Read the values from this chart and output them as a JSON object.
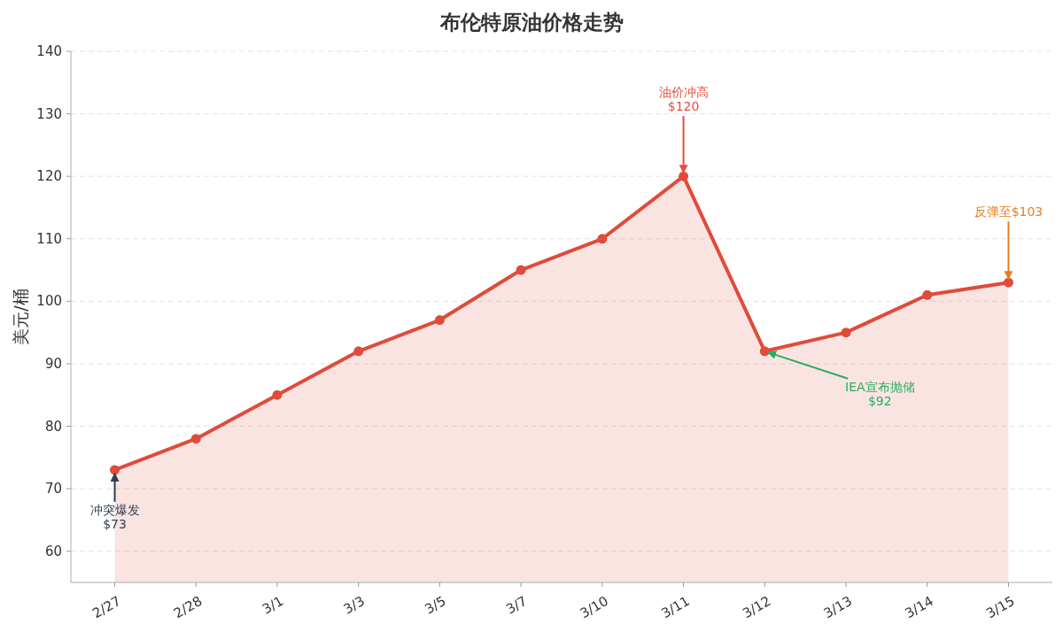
{
  "chart_data": {
    "type": "area",
    "title": "布伦特原油价格走势",
    "ylabel": "美元/桶",
    "categories": [
      "2/27",
      "2/28",
      "3/1",
      "3/3",
      "3/5",
      "3/7",
      "3/10",
      "3/11",
      "3/12",
      "3/13",
      "3/14",
      "3/15"
    ],
    "series": [
      {
        "color": "#e04b3a",
        "values": [
          73,
          78,
          85,
          92,
          97,
          105,
          110,
          120,
          92,
          95,
          101,
          103
        ]
      }
    ],
    "ylim": [
      55,
      140
    ],
    "yticks": [
      60,
      70,
      80,
      90,
      100,
      110,
      120,
      130,
      140
    ],
    "grid": "y",
    "marker": "circle",
    "line_style": "solid",
    "annotations": [
      {
        "text": "冲突爆发\n$73",
        "x": "2/27",
        "y": 73
      },
      {
        "text": "油价冲高\n$120",
        "x": "3/11",
        "y": 120
      },
      {
        "text": "IEA宣布抛储\n$92",
        "x": "3/12",
        "y": 92
      },
      {
        "text": "反弹至$103",
        "x": "3/15",
        "y": 103
      }
    ]
  }
}
